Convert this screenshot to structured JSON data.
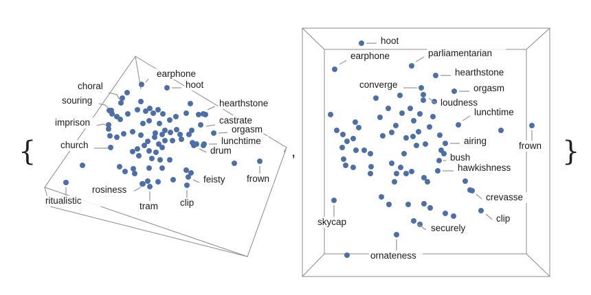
{
  "chart_data": [
    {
      "type": "scatter",
      "title": "",
      "labeled_points": [
        "choral",
        "souring",
        "imprison",
        "church",
        "ritualistic",
        "earphone",
        "hoot",
        "hearthstone",
        "castrate",
        "orgasm",
        "lunchtime",
        "drum",
        "frown",
        "feisty",
        "clip",
        "tram",
        "rosiness"
      ]
    },
    {
      "type": "scatter",
      "title": "",
      "labeled_points": [
        "hoot",
        "earphone",
        "parliamentarian",
        "hearthstone",
        "converge",
        "orgasm",
        "loudness",
        "lunchtime",
        "frown",
        "airing",
        "bush",
        "hawkishness",
        "crevasse",
        "clip",
        "skycap",
        "securely",
        "ornateness"
      ]
    }
  ],
  "delimiters": {
    "open": "{",
    "separator": ",",
    "close": "}"
  },
  "colors": {
    "point": "#4d6fa8",
    "frame": "#888888",
    "leader": "#999999"
  }
}
